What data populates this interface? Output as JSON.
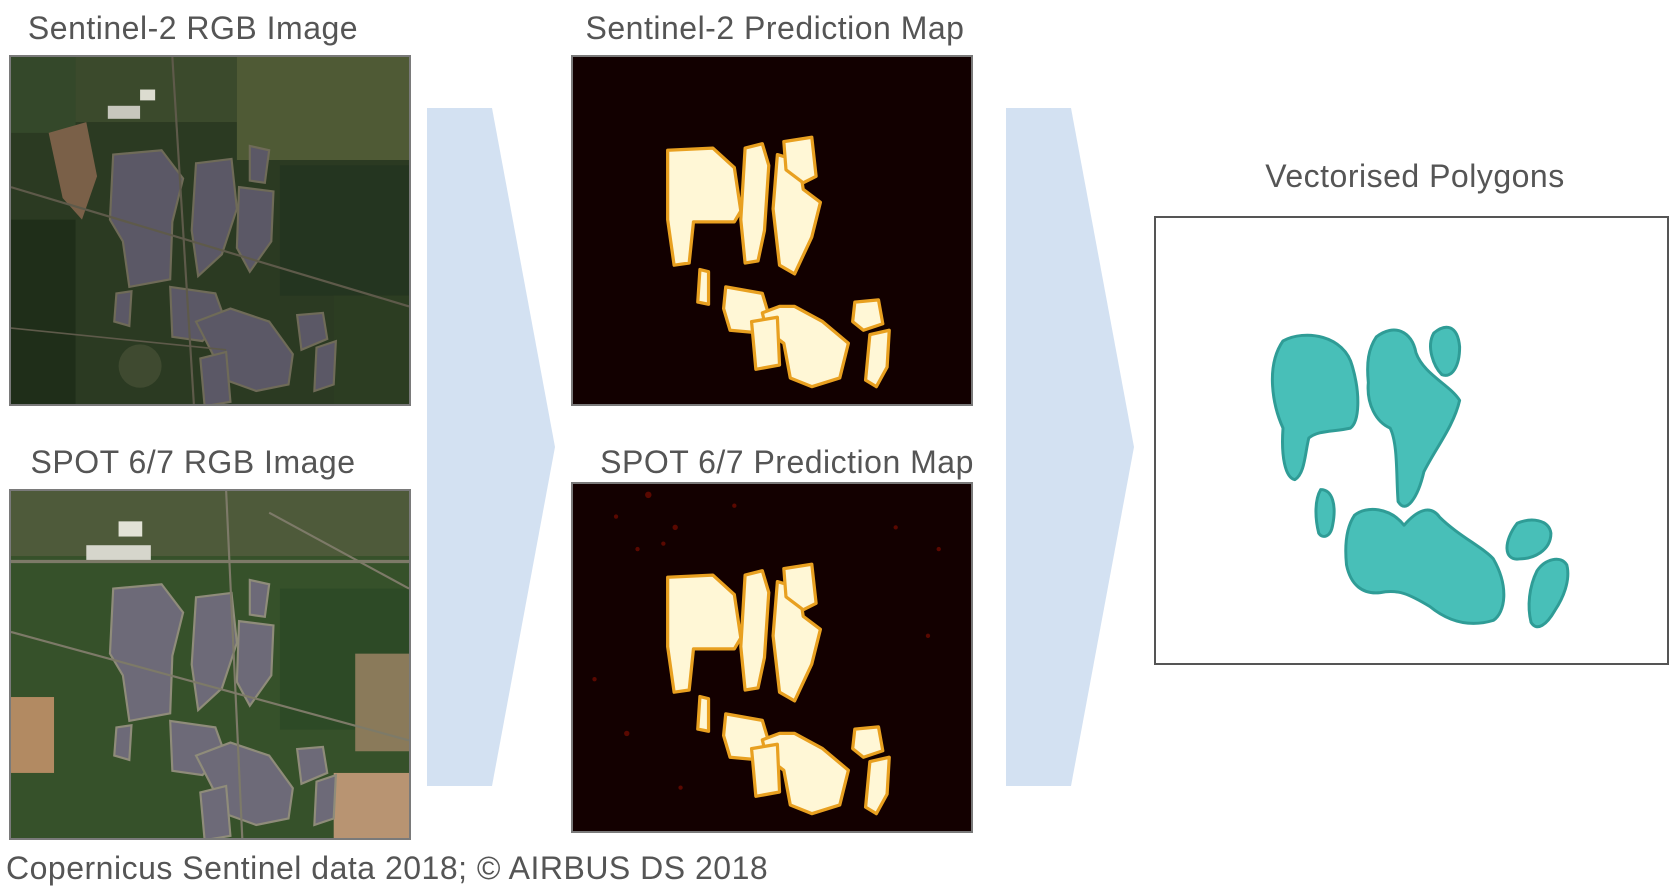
{
  "labels": {
    "s2_rgb": "Sentinel-2 RGB Image",
    "spot_rgb": "SPOT 6/7 RGB Image",
    "s2_pred": "Sentinel-2 Prediction Map",
    "spot_pred": "SPOT 6/7 Prediction Map",
    "vector": "Vectorised Polygons"
  },
  "caption": "Copernicus Sentinel data 2018; © AIRBUS DS 2018",
  "colors": {
    "arrow": "#d3e1f2",
    "text": "#555555",
    "polygon_fill": "#48bfb8",
    "polygon_stroke": "#2f9c96",
    "prediction_background": "#120000",
    "prediction_highlight": "#fff7d6",
    "satellite_forest": "#2a3a20",
    "satellite_solar": "#5e5a66"
  }
}
